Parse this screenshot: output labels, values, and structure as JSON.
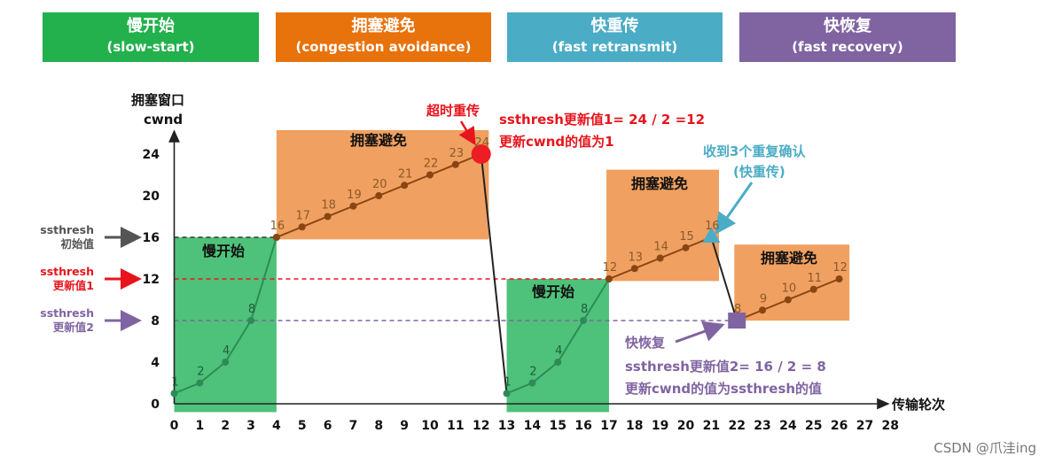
{
  "phases": [
    {
      "zh": "慢开始",
      "en": "(slow-start)",
      "color": "#22b14c"
    },
    {
      "zh": "拥塞避免",
      "en": "(congestion avoidance)",
      "color": "#e8720c"
    },
    {
      "zh": "快重传",
      "en": "(fast retransmit)",
      "color": "#4bacc6"
    },
    {
      "zh": "快恢复",
      "en": "(fast recovery)",
      "color": "#8064a2"
    }
  ],
  "axes": {
    "ylabel_line1": "拥塞窗口",
    "ylabel_line2": "cwnd",
    "xlabel": "传输轮次"
  },
  "side_labels": [
    {
      "line1": "ssthresh",
      "line2": "初始值",
      "color": "#555555"
    },
    {
      "line1": "ssthresh",
      "line2": "更新值1",
      "color": "#e8141c"
    },
    {
      "line1": "ssthresh",
      "line2": "更新值2",
      "color": "#8064a2"
    }
  ],
  "region_labels": {
    "ss1": "慢开始",
    "ca1": "拥塞避免",
    "ss2": "慢开始",
    "ca2": "拥塞避免",
    "ca3": "拥塞避免"
  },
  "annotations": {
    "timeout": "超时重传",
    "update1_line1": "ssthresh更新值1= 24 / 2 =12",
    "update1_line2": "更新cwnd的值为1",
    "dupack_line1": "收到3个重复确认",
    "dupack_line2": "(快重传)",
    "fastrec": "快恢复",
    "update2_line1": "ssthresh更新值2= 16 / 2 = 8",
    "update2_line2": "更新cwnd的值为ssthresh的值"
  },
  "watermark": "CSDN @爪洼ing",
  "chart_data": {
    "type": "line",
    "x_ticks": [
      0,
      1,
      2,
      3,
      4,
      5,
      6,
      7,
      8,
      9,
      10,
      11,
      12,
      13,
      14,
      15,
      16,
      17,
      18,
      19,
      20,
      21,
      22,
      23,
      24,
      25,
      26,
      27,
      28
    ],
    "y_ticks": [
      0,
      4,
      8,
      12,
      16,
      20,
      24
    ],
    "xlim": [
      0,
      28
    ],
    "ylim": [
      0,
      26
    ],
    "thresholds": [
      16,
      12,
      8
    ],
    "series": [
      {
        "x": [
          0,
          1,
          2,
          3,
          4
        ],
        "y": [
          1,
          2,
          4,
          8,
          16
        ],
        "labels": [
          "1",
          "2",
          "4",
          "8",
          ""
        ]
      },
      {
        "x": [
          4,
          5,
          6,
          7,
          8,
          9,
          10,
          11,
          12
        ],
        "y": [
          16,
          17,
          18,
          19,
          20,
          21,
          22,
          23,
          24
        ],
        "labels": [
          "16",
          "17",
          "18",
          "19",
          "20",
          "21",
          "22",
          "23",
          "24"
        ]
      },
      {
        "x": [
          13,
          14,
          15,
          16,
          17
        ],
        "y": [
          1,
          2,
          4,
          8,
          12
        ],
        "labels": [
          "1",
          "2",
          "4",
          "8",
          ""
        ]
      },
      {
        "x": [
          17,
          18,
          19,
          20,
          21
        ],
        "y": [
          12,
          13,
          14,
          15,
          16
        ],
        "labels": [
          "12",
          "13",
          "14",
          "15",
          "16"
        ]
      },
      {
        "x": [
          22,
          23,
          24,
          25,
          26
        ],
        "y": [
          8,
          9,
          10,
          11,
          12
        ],
        "labels": [
          "8",
          "9",
          "10",
          "11",
          "12"
        ]
      }
    ]
  }
}
